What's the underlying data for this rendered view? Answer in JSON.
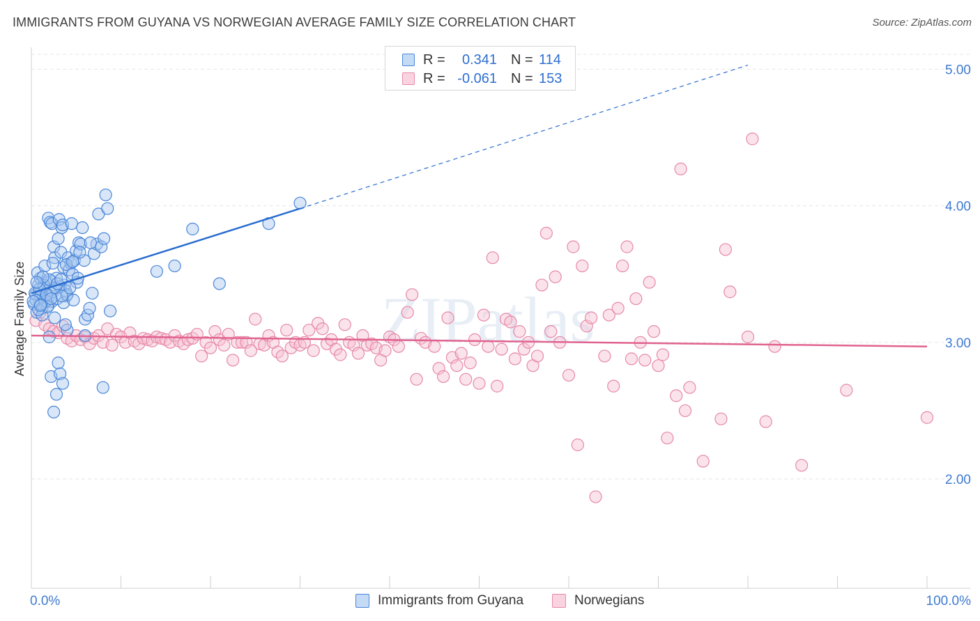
{
  "title": "IMMIGRANTS FROM GUYANA VS NORWEGIAN AVERAGE FAMILY SIZE CORRELATION CHART",
  "source": "Source: ZipAtlas.com",
  "watermark": "ZIPatlas",
  "legend": {
    "rows": [
      {
        "r_label": "R =",
        "r_value": "0.341",
        "n_label": "N =",
        "n_value": "114"
      },
      {
        "r_label": "R =",
        "r_value": "-0.061",
        "n_label": "N =",
        "n_value": "153"
      }
    ]
  },
  "bottom_legend": [
    "Immigrants from Guyana",
    "Norwegians"
  ],
  "colors": {
    "blue_fill": "#a9c8f0",
    "blue_stroke": "#4a86d8",
    "blue_line": "#2a6dd0",
    "pink_fill": "#f6c0d2",
    "pink_stroke": "#e688a8",
    "pink_line": "#e0628f",
    "axis_text": "#3f7bd0",
    "grid": "#e6e6e6"
  },
  "chart_data": {
    "type": "scatter",
    "title": "IMMIGRANTS FROM GUYANA VS NORWEGIAN AVERAGE FAMILY SIZE CORRELATION CHART",
    "xlabel": "",
    "ylabel": "Average Family Size",
    "xlim": [
      0,
      100
    ],
    "ylim": [
      1.2,
      5.15
    ],
    "y_ticks": [
      2.0,
      3.0,
      4.0,
      5.0
    ],
    "y_tick_labels": [
      "2.00",
      "3.00",
      "4.00",
      "5.00"
    ],
    "x_tick_labels": [
      "0.0%",
      "100.0%"
    ],
    "grid": true,
    "series": [
      {
        "name": "Immigrants from Guyana",
        "r": 0.341,
        "n": 114,
        "trend": {
          "x": [
            0,
            30
          ],
          "y": [
            3.36,
            3.98
          ],
          "dashed_extension_to": [
            80,
            5.03
          ]
        },
        "points": [
          [
            0.3,
            3.28
          ],
          [
            0.5,
            3.35
          ],
          [
            0.6,
            3.22
          ],
          [
            0.8,
            3.42
          ],
          [
            0.9,
            3.3
          ],
          [
            1.0,
            3.47
          ],
          [
            1.1,
            3.38
          ],
          [
            1.2,
            3.25
          ],
          [
            1.3,
            3.33
          ],
          [
            1.4,
            3.4
          ],
          [
            1.5,
            3.29
          ],
          [
            1.6,
            3.36
          ],
          [
            1.7,
            3.44
          ],
          [
            1.8,
            3.31
          ],
          [
            1.9,
            3.27
          ],
          [
            2.0,
            3.39
          ],
          [
            2.1,
            3.34
          ],
          [
            2.2,
            3.45
          ],
          [
            2.3,
            3.3
          ],
          [
            2.4,
            3.37
          ],
          [
            0.7,
            3.51
          ],
          [
            1.0,
            3.33
          ],
          [
            1.5,
            3.56
          ],
          [
            1.9,
            3.91
          ],
          [
            2.1,
            3.88
          ],
          [
            2.3,
            3.87
          ],
          [
            2.5,
            3.7
          ],
          [
            2.6,
            3.62
          ],
          [
            2.8,
            3.47
          ],
          [
            3.0,
            3.76
          ],
          [
            3.1,
            3.9
          ],
          [
            3.3,
            3.66
          ],
          [
            3.4,
            3.84
          ],
          [
            3.5,
            3.86
          ],
          [
            3.6,
            3.55
          ],
          [
            3.7,
            3.42
          ],
          [
            3.8,
            3.38
          ],
          [
            3.9,
            3.34
          ],
          [
            4.1,
            3.62
          ],
          [
            4.2,
            3.53
          ],
          [
            4.4,
            3.58
          ],
          [
            4.5,
            3.87
          ],
          [
            4.6,
            3.5
          ],
          [
            4.8,
            3.6
          ],
          [
            5.0,
            3.67
          ],
          [
            5.1,
            3.44
          ],
          [
            5.3,
            3.73
          ],
          [
            5.5,
            3.72
          ],
          [
            5.7,
            3.84
          ],
          [
            5.9,
            3.6
          ],
          [
            6.0,
            3.17
          ],
          [
            6.3,
            3.2
          ],
          [
            6.5,
            3.25
          ],
          [
            6.8,
            3.36
          ],
          [
            7.0,
            3.65
          ],
          [
            7.3,
            3.72
          ],
          [
            7.5,
            3.94
          ],
          [
            7.8,
            3.7
          ],
          [
            8.1,
            3.76
          ],
          [
            8.3,
            4.08
          ],
          [
            8.5,
            3.98
          ],
          [
            8.8,
            3.23
          ],
          [
            2.0,
            3.04
          ],
          [
            2.2,
            2.75
          ],
          [
            2.5,
            2.49
          ],
          [
            2.8,
            2.62
          ],
          [
            3.0,
            2.85
          ],
          [
            3.2,
            2.77
          ],
          [
            3.5,
            2.7
          ],
          [
            4.0,
            3.09
          ],
          [
            6.0,
            3.05
          ],
          [
            8.0,
            2.67
          ],
          [
            14.0,
            3.52
          ],
          [
            16.0,
            3.56
          ],
          [
            18.0,
            3.83
          ],
          [
            21.0,
            3.43
          ],
          [
            26.5,
            3.87
          ],
          [
            30.0,
            4.02
          ],
          [
            1.2,
            3.2
          ],
          [
            1.4,
            3.42
          ],
          [
            1.6,
            3.3
          ],
          [
            1.8,
            3.26
          ],
          [
            2.0,
            3.46
          ],
          [
            2.6,
            3.18
          ],
          [
            2.9,
            3.32
          ],
          [
            3.2,
            3.41
          ],
          [
            3.6,
            3.29
          ],
          [
            4.0,
            3.35
          ],
          [
            4.3,
            3.4
          ],
          [
            4.7,
            3.31
          ],
          [
            5.2,
            3.47
          ],
          [
            0.4,
            3.36
          ],
          [
            0.8,
            3.24
          ],
          [
            1.3,
            3.48
          ],
          [
            2.4,
            3.58
          ],
          [
            2.7,
            3.4
          ],
          [
            3.4,
            3.34
          ],
          [
            3.8,
            3.13
          ],
          [
            0.5,
            3.31
          ],
          [
            0.9,
            3.39
          ],
          [
            1.1,
            3.28
          ],
          [
            1.7,
            3.35
          ],
          [
            2.2,
            3.32
          ],
          [
            2.9,
            3.43
          ],
          [
            3.3,
            3.46
          ],
          [
            3.9,
            3.57
          ],
          [
            4.6,
            3.59
          ],
          [
            5.4,
            3.66
          ],
          [
            6.6,
            3.73
          ],
          [
            0.2,
            3.3
          ],
          [
            0.6,
            3.44
          ],
          [
            1.0,
            3.27
          ]
        ]
      },
      {
        "name": "Norwegians",
        "r": -0.061,
        "n": 153,
        "trend": {
          "x": [
            0,
            100
          ],
          "y": [
            3.05,
            2.97
          ]
        },
        "points": [
          [
            0.5,
            3.16
          ],
          [
            1.0,
            3.22
          ],
          [
            1.5,
            3.13
          ],
          [
            2.0,
            3.1
          ],
          [
            2.5,
            3.08
          ],
          [
            3.0,
            3.07
          ],
          [
            3.5,
            3.12
          ],
          [
            4.0,
            3.03
          ],
          [
            4.5,
            3.01
          ],
          [
            5.0,
            3.05
          ],
          [
            5.5,
            3.02
          ],
          [
            6.0,
            3.04
          ],
          [
            6.5,
            2.99
          ],
          [
            7.0,
            3.03
          ],
          [
            7.5,
            3.05
          ],
          [
            8.0,
            3.0
          ],
          [
            8.5,
            3.1
          ],
          [
            9.0,
            2.98
          ],
          [
            9.5,
            3.06
          ],
          [
            10.0,
            3.04
          ],
          [
            10.5,
            3.0
          ],
          [
            11.0,
            3.07
          ],
          [
            11.5,
            3.01
          ],
          [
            12.0,
            2.99
          ],
          [
            12.5,
            3.03
          ],
          [
            13.0,
            3.02
          ],
          [
            13.5,
            3.01
          ],
          [
            14.0,
            3.04
          ],
          [
            14.5,
            3.03
          ],
          [
            15.0,
            3.02
          ],
          [
            15.5,
            3.0
          ],
          [
            16.0,
            3.05
          ],
          [
            16.5,
            3.01
          ],
          [
            17.0,
            2.99
          ],
          [
            17.5,
            3.02
          ],
          [
            18.0,
            3.03
          ],
          [
            18.5,
            3.06
          ],
          [
            19.0,
            2.9
          ],
          [
            19.5,
            3.0
          ],
          [
            20.0,
            2.96
          ],
          [
            20.5,
            3.08
          ],
          [
            21.0,
            3.02
          ],
          [
            21.5,
            2.98
          ],
          [
            22.0,
            3.06
          ],
          [
            22.5,
            2.87
          ],
          [
            23.0,
            3.0
          ],
          [
            23.5,
            3.0
          ],
          [
            24.0,
            3.0
          ],
          [
            24.5,
            2.94
          ],
          [
            25.0,
            3.17
          ],
          [
            25.5,
            2.99
          ],
          [
            26.0,
            2.98
          ],
          [
            26.5,
            3.05
          ],
          [
            27.0,
            3.0
          ],
          [
            27.5,
            2.93
          ],
          [
            28.0,
            2.9
          ],
          [
            28.5,
            3.09
          ],
          [
            29.0,
            2.96
          ],
          [
            29.5,
            3.0
          ],
          [
            30.0,
            2.98
          ],
          [
            30.5,
            3.0
          ],
          [
            31.0,
            3.09
          ],
          [
            31.5,
            2.94
          ],
          [
            32.0,
            3.14
          ],
          [
            32.5,
            3.1
          ],
          [
            33.0,
            2.99
          ],
          [
            33.5,
            3.02
          ],
          [
            34.0,
            2.95
          ],
          [
            34.5,
            2.91
          ],
          [
            35.0,
            3.13
          ],
          [
            35.5,
            3.0
          ],
          [
            36.0,
            2.98
          ],
          [
            36.5,
            2.92
          ],
          [
            37.0,
            3.05
          ],
          [
            37.5,
            2.98
          ],
          [
            38.0,
            2.99
          ],
          [
            38.5,
            2.96
          ],
          [
            39.0,
            2.87
          ],
          [
            39.5,
            2.94
          ],
          [
            40.0,
            3.04
          ],
          [
            40.5,
            3.02
          ],
          [
            41.0,
            2.97
          ],
          [
            42.0,
            3.22
          ],
          [
            42.5,
            3.35
          ],
          [
            43.0,
            2.73
          ],
          [
            43.5,
            3.03
          ],
          [
            44.0,
            3.0
          ],
          [
            45.0,
            2.97
          ],
          [
            45.5,
            2.81
          ],
          [
            46.0,
            2.75
          ],
          [
            46.5,
            3.18
          ],
          [
            47.0,
            2.89
          ],
          [
            47.5,
            2.83
          ],
          [
            48.0,
            2.92
          ],
          [
            48.5,
            2.73
          ],
          [
            49.0,
            2.85
          ],
          [
            49.5,
            3.02
          ],
          [
            50.0,
            2.7
          ],
          [
            50.5,
            3.2
          ],
          [
            51.0,
            2.97
          ],
          [
            51.5,
            3.62
          ],
          [
            52.0,
            2.68
          ],
          [
            52.5,
            2.95
          ],
          [
            53.0,
            3.17
          ],
          [
            53.5,
            3.15
          ],
          [
            54.0,
            2.88
          ],
          [
            54.5,
            3.08
          ],
          [
            55.0,
            2.95
          ],
          [
            55.5,
            3.0
          ],
          [
            56.0,
            2.83
          ],
          [
            56.5,
            2.9
          ],
          [
            57.0,
            3.42
          ],
          [
            57.5,
            3.8
          ],
          [
            58.0,
            3.08
          ],
          [
            58.5,
            3.48
          ],
          [
            59.0,
            3.0
          ],
          [
            60.0,
            2.76
          ],
          [
            60.5,
            3.7
          ],
          [
            61.0,
            2.25
          ],
          [
            61.5,
            3.56
          ],
          [
            62.0,
            3.12
          ],
          [
            62.5,
            3.18
          ],
          [
            63.0,
            1.87
          ],
          [
            64.0,
            2.9
          ],
          [
            64.5,
            3.2
          ],
          [
            65.0,
            2.68
          ],
          [
            65.5,
            3.25
          ],
          [
            66.0,
            3.56
          ],
          [
            66.5,
            3.7
          ],
          [
            67.0,
            2.88
          ],
          [
            67.5,
            3.32
          ],
          [
            68.0,
            3.0
          ],
          [
            68.5,
            2.87
          ],
          [
            69.0,
            3.44
          ],
          [
            69.5,
            3.08
          ],
          [
            70.0,
            2.83
          ],
          [
            70.5,
            2.91
          ],
          [
            71.0,
            2.3
          ],
          [
            72.0,
            2.61
          ],
          [
            72.5,
            4.27
          ],
          [
            73.0,
            2.5
          ],
          [
            73.5,
            2.67
          ],
          [
            75.0,
            2.13
          ],
          [
            77.0,
            2.44
          ],
          [
            77.5,
            3.68
          ],
          [
            78.0,
            3.37
          ],
          [
            80.0,
            3.04
          ],
          [
            80.5,
            4.49
          ],
          [
            82.0,
            2.42
          ],
          [
            83.0,
            2.97
          ],
          [
            86.0,
            2.1
          ],
          [
            91.0,
            2.65
          ],
          [
            100.0,
            2.45
          ]
        ]
      }
    ]
  }
}
